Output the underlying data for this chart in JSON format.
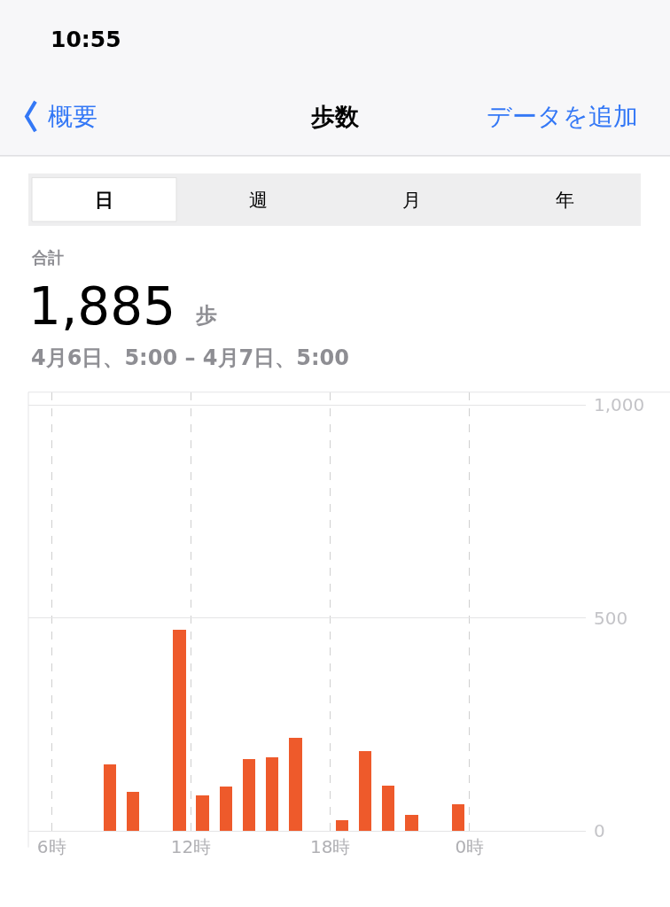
{
  "chart_data": {
    "type": "bar",
    "title": "歩数",
    "annotations": [
      "10:55",
      "概要",
      "データを追加",
      "日",
      "週",
      "月",
      "年",
      "合計",
      "1,885",
      "歩",
      "4月6日、5:00 – 4月7日、5:00"
    ],
    "x": [
      "--04-06T08:30",
      "--04-06T09:30",
      "--04-06T11:30",
      "--04-06T12:30",
      "--04-06T13:30",
      "--04-06T14:30",
      "--04-06T15:30",
      "--04-06T16:30",
      "--04-06T18:30",
      "--04-06T19:30",
      "--04-06T20:30",
      "--04-06T21:30",
      "--04-06T23:30"
    ],
    "values": [
      157,
      92,
      473,
      83,
      105,
      168,
      172,
      219,
      25,
      187,
      107,
      37,
      62
    ],
    "color": "#ee5a2b",
    "xlim": [
      "--04-06T05:00",
      "--04-07T05:00"
    ],
    "xticks": [
      {
        "value": "--04-06T06:00",
        "label": "6時"
      },
      {
        "value": "--04-06T12:00",
        "label": "12時"
      },
      {
        "value": "--04-06T18:00",
        "label": "18時"
      },
      {
        "value": "--04-07T00:00",
        "label": "0時"
      }
    ],
    "ylim": [
      0,
      1030
    ],
    "yticks": [
      0,
      500,
      {
        "value": 1000,
        "label": "1,000"
      }
    ],
    "grid": true
  }
}
